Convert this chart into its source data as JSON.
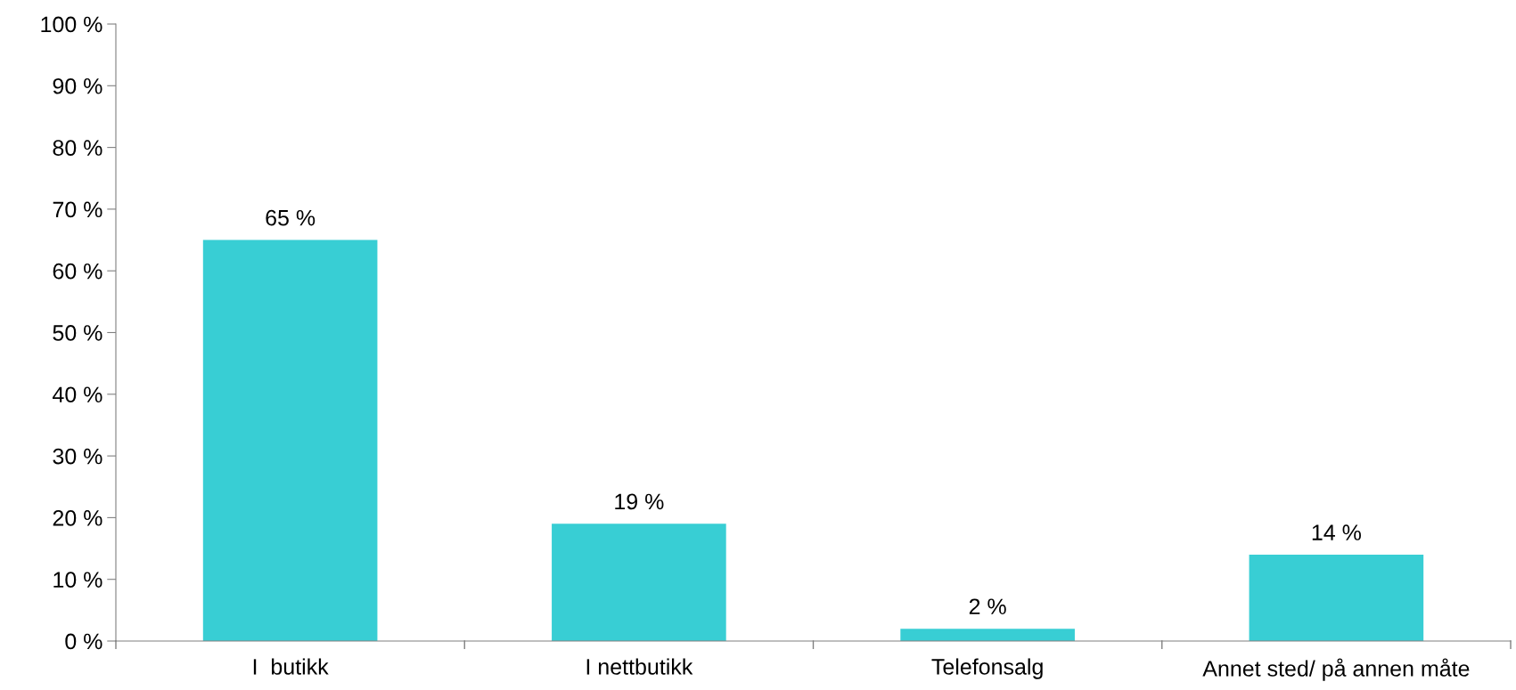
{
  "chart_data": {
    "type": "bar",
    "categories": [
      "I  butikk",
      "I nettbutikk",
      "Telefonsalg",
      "Annet sted/ på annen måte"
    ],
    "values": [
      65,
      19,
      2,
      14
    ],
    "value_labels": [
      "65 %",
      "19 %",
      "2 %",
      "14 %"
    ],
    "color": "#38ced4",
    "ylim": [
      0,
      100
    ],
    "yticks": [
      {
        "value": 0,
        "label": "0 %"
      },
      {
        "value": 10,
        "label": "10 %"
      },
      {
        "value": 20,
        "label": "20 %"
      },
      {
        "value": 30,
        "label": "30 %"
      },
      {
        "value": 40,
        "label": "40 %"
      },
      {
        "value": 50,
        "label": "50 %"
      },
      {
        "value": 60,
        "label": "60 %"
      },
      {
        "value": 70,
        "label": "70 %"
      },
      {
        "value": 80,
        "label": "80 %"
      },
      {
        "value": 90,
        "label": "90 %"
      },
      {
        "value": 100,
        "label": "100 %"
      }
    ],
    "grid": false,
    "legend": false
  }
}
